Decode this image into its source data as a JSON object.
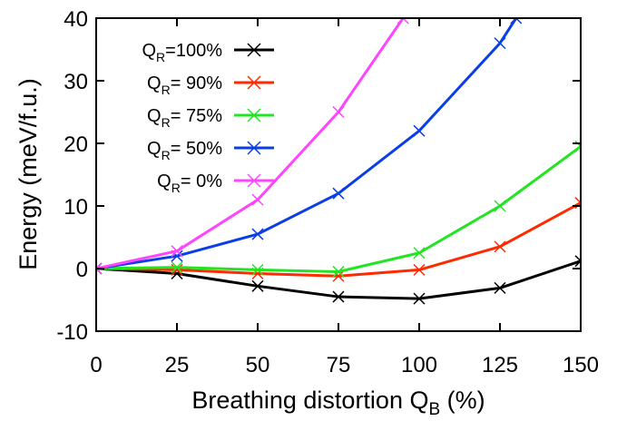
{
  "chart_data": {
    "type": "line",
    "xlabel": "Breathing distortion Q",
    "xlabel_sub": "B",
    "xlabel_tail": " (%)",
    "ylabel": "Energy (meV/f.u.)",
    "xlim": [
      0,
      150
    ],
    "ylim": [
      -10,
      40
    ],
    "xticks": [
      0,
      25,
      50,
      75,
      100,
      125,
      150
    ],
    "yticks": [
      -10,
      0,
      10,
      20,
      30,
      40
    ],
    "grid": false,
    "legend_position": "top-left",
    "marker": "x",
    "series": [
      {
        "name": "Q",
        "name_sub": "R",
        "name_tail": "=100%",
        "color": "#000000",
        "x": [
          0,
          25,
          50,
          75,
          100,
          125,
          150
        ],
        "y": [
          0,
          -0.8,
          -2.8,
          -4.5,
          -4.8,
          -3.1,
          1.2
        ]
      },
      {
        "name": "Q",
        "name_sub": "R",
        "name_tail": "= 90%",
        "color": "#ff2a00",
        "x": [
          0,
          25,
          50,
          75,
          100,
          125,
          150
        ],
        "y": [
          0,
          -0.2,
          -0.8,
          -1.2,
          -0.2,
          3.5,
          10.5
        ]
      },
      {
        "name": "Q",
        "name_sub": "R",
        "name_tail": "= 75%",
        "color": "#22e522",
        "x": [
          0,
          25,
          50,
          75,
          100,
          125,
          150
        ],
        "y": [
          0,
          0.2,
          -0.2,
          -0.5,
          2.5,
          10.0,
          19.5
        ]
      },
      {
        "name": "Q",
        "name_sub": "R",
        "name_tail": "= 50%",
        "color": "#0a3ee6",
        "x": [
          0,
          25,
          50,
          75,
          100,
          125,
          130
        ],
        "y": [
          0,
          2.0,
          5.5,
          12.0,
          22.0,
          36.0,
          40.0
        ]
      },
      {
        "name": "Q",
        "name_sub": "R",
        "name_tail": "=  0%",
        "color": "#ff44ff",
        "x": [
          0,
          25,
          50,
          75,
          95
        ],
        "y": [
          0,
          2.8,
          11.0,
          25.0,
          40.0
        ]
      }
    ]
  }
}
